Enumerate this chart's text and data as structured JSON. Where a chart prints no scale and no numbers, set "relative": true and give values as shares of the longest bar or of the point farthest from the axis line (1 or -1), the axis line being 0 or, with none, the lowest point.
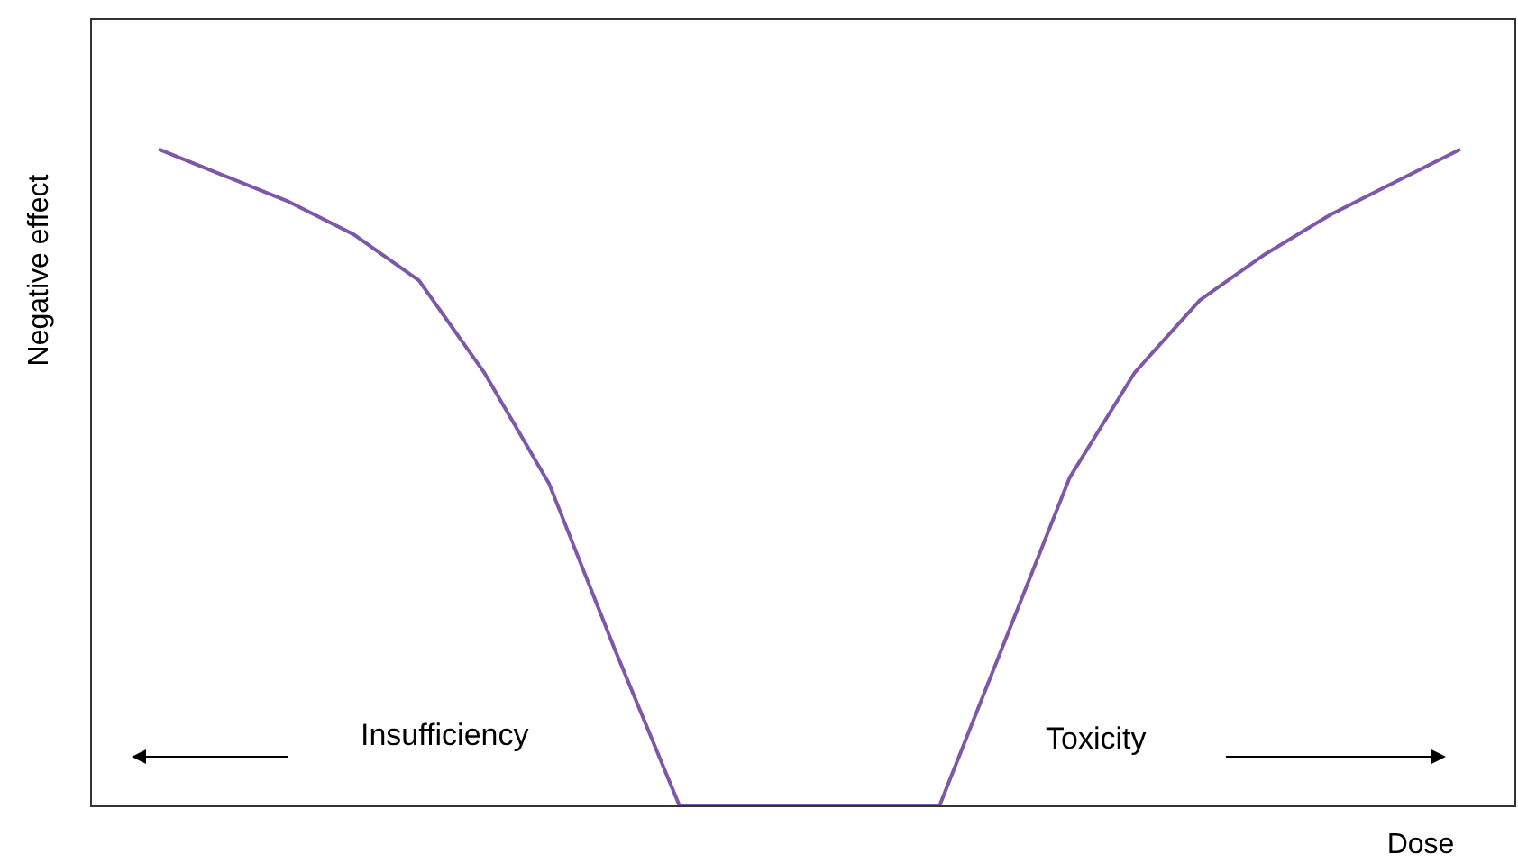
{
  "chart_data": {
    "type": "line",
    "relative": true,
    "ylabel": "Negative effect",
    "xlabel": "Dose",
    "annotations": [
      "Insufficiency",
      "Toxicity"
    ],
    "legend": false,
    "marker": "none",
    "categories": [
      null,
      null,
      null,
      null,
      null,
      null,
      null,
      null,
      null,
      null,
      null,
      null,
      null,
      null,
      null,
      null,
      null,
      null,
      null,
      null,
      null
    ],
    "series": [
      {
        "color": "#7e57a8",
        "values": [
          1,
          0.96,
          0.92,
          0.87,
          0.8,
          0.66,
          0.49,
          0.24,
          0,
          0,
          0,
          0,
          0,
          0.25,
          0.5,
          0.66,
          0.77,
          0.84,
          0.9,
          0.95,
          1
        ]
      }
    ]
  }
}
